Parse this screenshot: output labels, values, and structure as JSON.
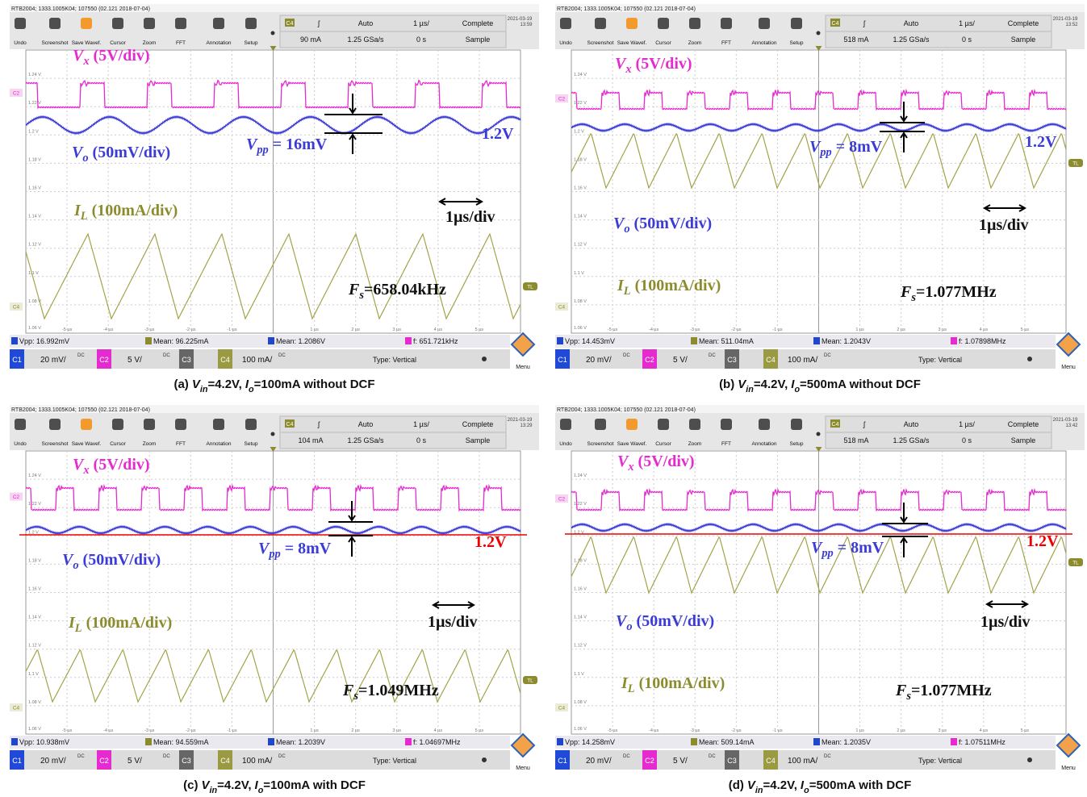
{
  "header": "RTB2004; 1333.1005K04; 107550 (02.121 2018-07-04)",
  "tools": [
    "Undo",
    "Screenshot",
    "Save Wavef.",
    "Cursor",
    "Zoom",
    "FFT",
    "Annotation",
    "Setup"
  ],
  "status_labels": {
    "source": "C4",
    "slope": "ʃ",
    "mode": "Auto",
    "timebase": "1 µs/",
    "acquisition": "Complete",
    "rate": "1.25 GSa/s",
    "offset": "0 s",
    "acq_mode": "Sample",
    "date": "2021-03-19"
  },
  "y_axis": [
    "1.24 V",
    "1.22 V",
    "1.2 V",
    "1.18 V",
    "1.16 V",
    "1.14 V",
    "1.12 V",
    "1.1 V",
    "1.08 V",
    "1.06 V"
  ],
  "x_axis": [
    "-5 µs",
    "-4 µs",
    "-3 µs",
    "-2 µs",
    "-1 µs",
    "1 µs",
    "2 µs",
    "3 µs",
    "4 µs",
    "5 µs"
  ],
  "markers": {
    "c2": "C2",
    "c4": "C4",
    "tl": "TL"
  },
  "channel_bar": {
    "c1": "C1",
    "c1_scale": "20 mV/",
    "c2": "C2",
    "c2_scale": "5 V/",
    "c3": "C3",
    "c4": "C4",
    "c4_scale": "100 mA/",
    "coupling": "DC",
    "type": "Type: Vertical",
    "menu": "Menu"
  },
  "labels": {
    "vx": {
      "symbol": "V",
      "sub": "x",
      "text": " (5V/div)"
    },
    "vo": {
      "symbol": "V",
      "sub": "o",
      "text": " (50mV/div)"
    },
    "il": {
      "symbol": "I",
      "sub": "L",
      "text": " (100mA/div)"
    },
    "vo_level": "1.2V",
    "timescale": "1µs/div",
    "vpp": {
      "symbol": "V",
      "sub": "pp"
    },
    "fs": {
      "symbol": "F",
      "sub": "s"
    }
  },
  "panels": [
    {
      "level": "90 mA",
      "time": "13:59",
      "vpp": " = 16mV",
      "fs": "=658.04kHz",
      "measurements": [
        "Vpp: 16.992mV",
        "Mean: 96.225mA",
        "Mean: 1.2086V",
        "f: 651.721kHz"
      ],
      "caption": {
        "label": "(a)",
        "v": "V",
        "vsub": "in",
        "vval": "=4.2V,",
        "i": "I",
        "isub": "o",
        "rest": "=100mA without DCF"
      }
    },
    {
      "level": "518 mA",
      "time": "13:52",
      "vpp": " = 8mV",
      "fs": "=1.077MHz",
      "measurements": [
        "Vpp: 14.453mV",
        "Mean: 511.04mA",
        "Mean: 1.2043V",
        "f: 1.07898MHz"
      ],
      "caption": {
        "label": "(b)",
        "v": "V",
        "vsub": "in",
        "vval": "=4.2V,",
        "i": "I",
        "isub": "o",
        "rest": "=500mA without DCF"
      }
    },
    {
      "level": "104 mA",
      "time": "13:29",
      "vpp": " = 8mV",
      "fs": "=1.049MHz",
      "measurements": [
        "Vpp: 10.938mV",
        "Mean: 94.559mA",
        "Mean: 1.2039V",
        "f: 1.04697MHz"
      ],
      "caption": {
        "label": "(c)",
        "v": "V",
        "vsub": "in",
        "vval": "=4.2V,",
        "i": "I",
        "isub": "o",
        "rest": "=100mA with DCF"
      }
    },
    {
      "level": "518 mA",
      "time": "13:42",
      "vpp": " = 8mV",
      "fs": "=1.077MHz",
      "measurements": [
        "Vpp: 14.258mV",
        "Mean: 509.14mA",
        "Mean: 1.2035V",
        "f: 1.07511MHz"
      ],
      "caption": {
        "label": "(d)",
        "v": "V",
        "vsub": "in",
        "vval": "=4.2V,",
        "i": "I",
        "isub": "o",
        "rest": "=500mA with DCF"
      }
    }
  ]
}
